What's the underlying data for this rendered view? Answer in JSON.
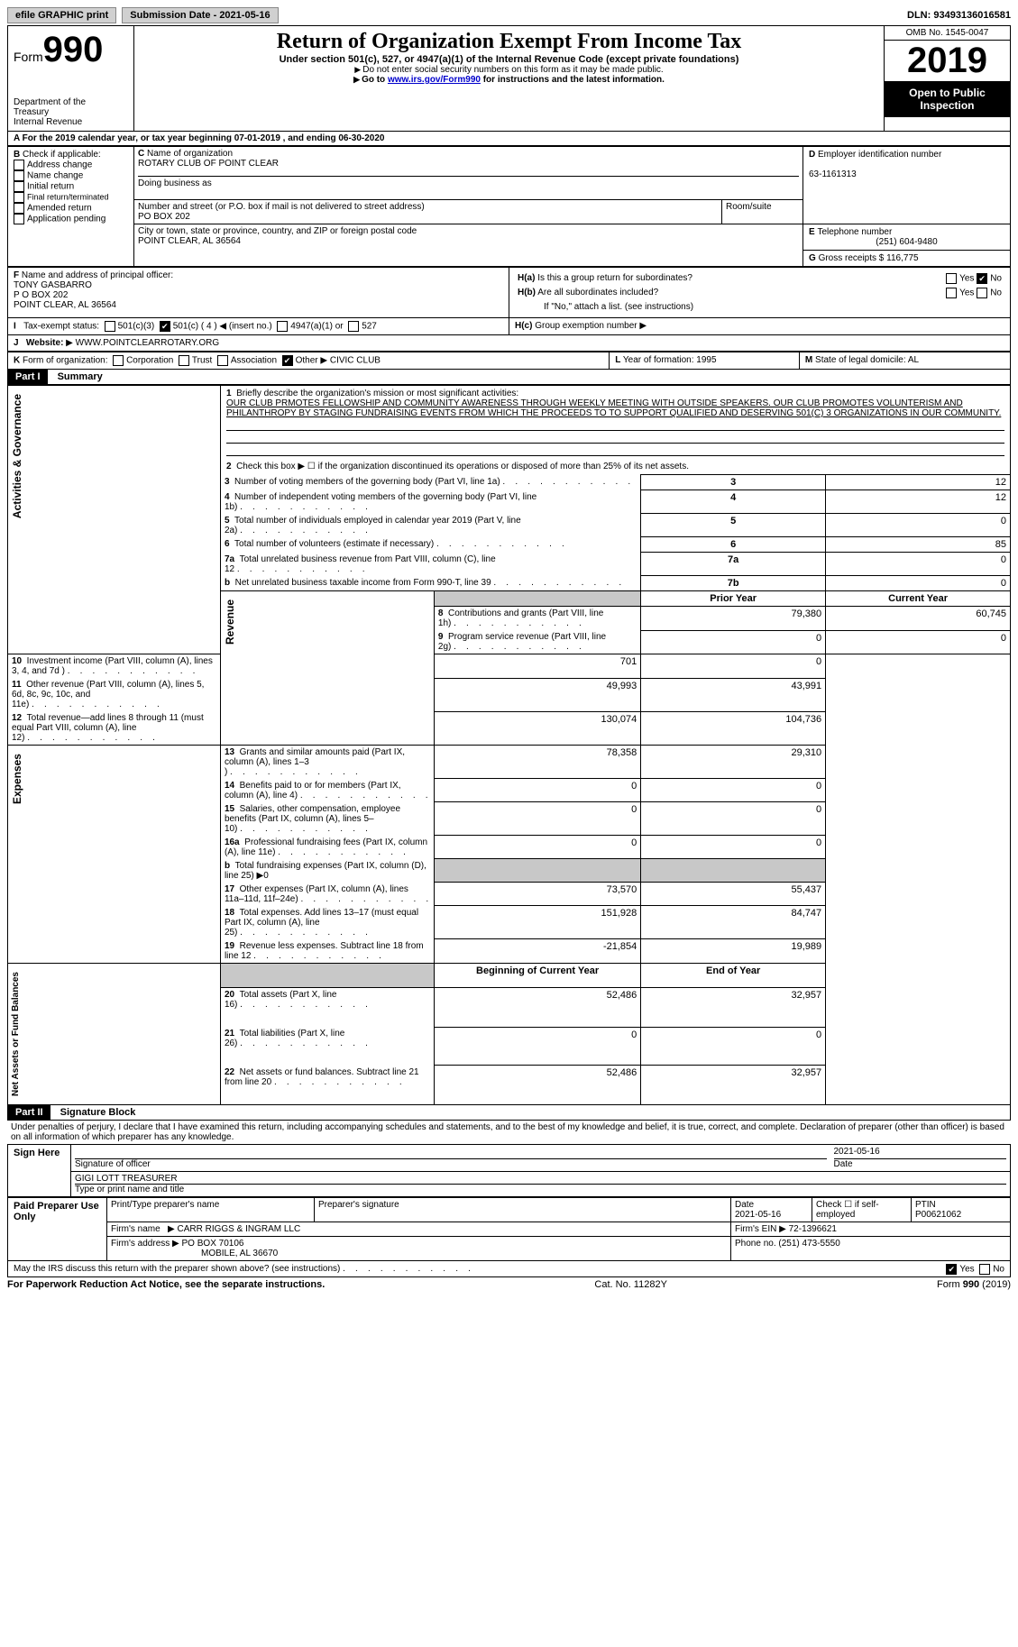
{
  "topbar": {
    "efile_label": "efile GRAPHIC print",
    "submission_label": "Submission Date - 2021-05-16",
    "dln_label": "DLN: 93493136016581"
  },
  "header": {
    "form_prefix": "Form",
    "form_number": "990",
    "dept1": "Department of the",
    "dept2": "Treasury",
    "dept3": "Internal Revenue",
    "title": "Return of Organization Exempt From Income Tax",
    "subtitle": "Under section 501(c), 527, or 4947(a)(1) of the Internal Revenue Code (except private foundations)",
    "note1": "Do not enter social security numbers on this form as it may be made public.",
    "note2_pre": "Go to ",
    "note2_link": "www.irs.gov/Form990",
    "note2_post": " for instructions and the latest information.",
    "omb": "OMB No. 1545-0047",
    "year": "2019",
    "open_public": "Open to Public Inspection"
  },
  "lineA": "For the 2019 calendar year, or tax year beginning 07-01-2019    , and ending 06-30-2020",
  "boxB": {
    "label": "Check if applicable:",
    "opt1": "Address change",
    "opt2": "Name change",
    "opt3": "Initial return",
    "opt4": "Final return/terminated",
    "opt5": "Amended return",
    "opt6": "Application pending"
  },
  "boxC": {
    "name_label": "Name of organization",
    "name": "ROTARY CLUB OF POINT CLEAR",
    "dba_label": "Doing business as",
    "addr_label": "Number and street (or P.O. box if mail is not delivered to street address)",
    "room_label": "Room/suite",
    "addr": "PO BOX 202",
    "city_label": "City or town, state or province, country, and ZIP or foreign postal code",
    "city": "POINT CLEAR, AL   36564"
  },
  "boxD": {
    "label": "Employer identification number",
    "val": "63-1161313"
  },
  "boxE": {
    "label": "Telephone number",
    "val": "(251) 604-9480"
  },
  "boxG": {
    "label": "Gross receipts $",
    "val": "116,775"
  },
  "boxF": {
    "label": "Name and address of principal officer:",
    "line1": "TONY GASBARRO",
    "line2": "P O BOX 202",
    "line3": "POINT CLEAR, AL   36564"
  },
  "boxH": {
    "a_label": "Is this a group return for subordinates?",
    "b_label": "Are all subordinates included?",
    "b_note": "If \"No,\" attach a list. (see instructions)",
    "c_label": "Group exemption number"
  },
  "taxexempt": {
    "label": "Tax-exempt status:",
    "o1": "501(c)(3)",
    "o2": "501(c) ( 4 )",
    "o2_note": "(insert no.)",
    "o3": "4947(a)(1) or",
    "o4": "527"
  },
  "website": {
    "label": "Website:",
    "val": "WWW.POINTCLEARROTARY.ORG"
  },
  "lineK": {
    "label": "Form of organization:",
    "o1": "Corporation",
    "o2": "Trust",
    "o3": "Association",
    "o4": "Other",
    "other_val": "CIVIC CLUB"
  },
  "lineL": {
    "label": "Year of formation:",
    "val": "1995"
  },
  "lineM": {
    "label": "State of legal domicile:",
    "val": "AL"
  },
  "part1": {
    "header": "Part I",
    "title": "Summary",
    "q1_label": "Briefly describe the organization's mission or most significant activities:",
    "q1_text": "OUR CLUB PRMOTES FELLOWSHIP AND COMMUNITY AWARENESS THROUGH WEEKLY MEETING WITH OUTSIDE SPEAKERS. OUR CLUB PROMOTES VOLUNTERISM AND PHILANTHROPY BY STAGING FUNDRAISING EVENTS FROM WHICH THE PROCEEDS TO TO SUPPORT QUALIFIED AND DESERVING 501(C) 3 ORGANIZATIONS IN OUR COMMUNITY.",
    "q2": "Check this box ▶ ☐  if the organization discontinued its operations or disposed of more than 25% of its net assets.",
    "rows_ag": [
      {
        "n": "3",
        "t": "Number of voting members of the governing body (Part VI, line 1a)",
        "box": "3",
        "v": "12"
      },
      {
        "n": "4",
        "t": "Number of independent voting members of the governing body (Part VI, line 1b)",
        "box": "4",
        "v": "12"
      },
      {
        "n": "5",
        "t": "Total number of individuals employed in calendar year 2019 (Part V, line 2a)",
        "box": "5",
        "v": "0"
      },
      {
        "n": "6",
        "t": "Total number of volunteers (estimate if necessary)",
        "box": "6",
        "v": "85"
      },
      {
        "n": "7a",
        "t": "Total unrelated business revenue from Part VIII, column (C), line 12",
        "box": "7a",
        "v": "0"
      },
      {
        "n": "b",
        "t": "Net unrelated business taxable income from Form 990-T, line 39",
        "box": "7b",
        "v": "0"
      }
    ],
    "col_prior": "Prior Year",
    "col_current": "Current Year",
    "rows_rev": [
      {
        "n": "8",
        "t": "Contributions and grants (Part VIII, line 1h)",
        "p": "79,380",
        "c": "60,745"
      },
      {
        "n": "9",
        "t": "Program service revenue (Part VIII, line 2g)",
        "p": "0",
        "c": "0"
      },
      {
        "n": "10",
        "t": "Investment income (Part VIII, column (A), lines 3, 4, and 7d )",
        "p": "701",
        "c": "0"
      },
      {
        "n": "11",
        "t": "Other revenue (Part VIII, column (A), lines 5, 6d, 8c, 9c, 10c, and 11e)",
        "p": "49,993",
        "c": "43,991"
      },
      {
        "n": "12",
        "t": "Total revenue—add lines 8 through 11 (must equal Part VIII, column (A), line 12)",
        "p": "130,074",
        "c": "104,736"
      }
    ],
    "rows_exp": [
      {
        "n": "13",
        "t": "Grants and similar amounts paid (Part IX, column (A), lines 1–3 )",
        "p": "78,358",
        "c": "29,310"
      },
      {
        "n": "14",
        "t": "Benefits paid to or for members (Part IX, column (A), line 4)",
        "p": "0",
        "c": "0"
      },
      {
        "n": "15",
        "t": "Salaries, other compensation, employee benefits (Part IX, column (A), lines 5–10)",
        "p": "0",
        "c": "0"
      },
      {
        "n": "16a",
        "t": "Professional fundraising fees (Part IX, column (A), line 11e)",
        "p": "0",
        "c": "0"
      },
      {
        "n": "b",
        "t": "Total fundraising expenses (Part IX, column (D), line 25) ▶0",
        "p": "",
        "c": "",
        "shade": true
      },
      {
        "n": "17",
        "t": "Other expenses (Part IX, column (A), lines 11a–11d, 11f–24e)",
        "p": "73,570",
        "c": "55,437"
      },
      {
        "n": "18",
        "t": "Total expenses. Add lines 13–17 (must equal Part IX, column (A), line 25)",
        "p": "151,928",
        "c": "84,747"
      },
      {
        "n": "19",
        "t": "Revenue less expenses. Subtract line 18 from line 12",
        "p": "-21,854",
        "c": "19,989"
      }
    ],
    "col_begin": "Beginning of Current Year",
    "col_end": "End of Year",
    "rows_na": [
      {
        "n": "20",
        "t": "Total assets (Part X, line 16)",
        "p": "52,486",
        "c": "32,957"
      },
      {
        "n": "21",
        "t": "Total liabilities (Part X, line 26)",
        "p": "0",
        "c": "0"
      },
      {
        "n": "22",
        "t": "Net assets or fund balances. Subtract line 21 from line 20",
        "p": "52,486",
        "c": "32,957"
      }
    ],
    "side_ag": "Activities & Governance",
    "side_rev": "Revenue",
    "side_exp": "Expenses",
    "side_na": "Net Assets or Fund Balances"
  },
  "part2": {
    "header": "Part II",
    "title": "Signature Block",
    "decl": "Under penalties of perjury, I declare that I have examined this return, including accompanying schedules and statements, and to the best of my knowledge and belief, it is true, correct, and complete. Declaration of preparer (other than officer) is based on all information of which preparer has any knowledge.",
    "sign_here": "Sign Here",
    "sig_officer": "Signature of officer",
    "date_label": "Date",
    "sig_date": "2021-05-16",
    "officer_name": "GIGI LOTT TREASURER",
    "officer_type": "Type or print name and title",
    "paid": "Paid Preparer Use Only",
    "prep_name_label": "Print/Type preparer's name",
    "prep_sig_label": "Preparer's signature",
    "prep_date_label": "Date",
    "prep_date": "2021-05-16",
    "check_self": "Check ☐ if self-employed",
    "ptin_label": "PTIN",
    "ptin": "P00621062",
    "firm_name_label": "Firm's name",
    "firm_name": "CARR RIGGS & INGRAM LLC",
    "firm_ein_label": "Firm's EIN",
    "firm_ein": "72-1396621",
    "firm_addr_label": "Firm's address",
    "firm_addr1": "PO BOX 70106",
    "firm_addr2": "MOBILE, AL  36670",
    "firm_phone_label": "Phone no.",
    "firm_phone": "(251) 473-5550",
    "discuss": "May the IRS discuss this return with the preparer shown above? (see instructions)"
  },
  "footer": {
    "left": "For Paperwork Reduction Act Notice, see the separate instructions.",
    "mid": "Cat. No. 11282Y",
    "right_pre": "Form ",
    "right_form": "990",
    "right_post": " (2019)"
  }
}
